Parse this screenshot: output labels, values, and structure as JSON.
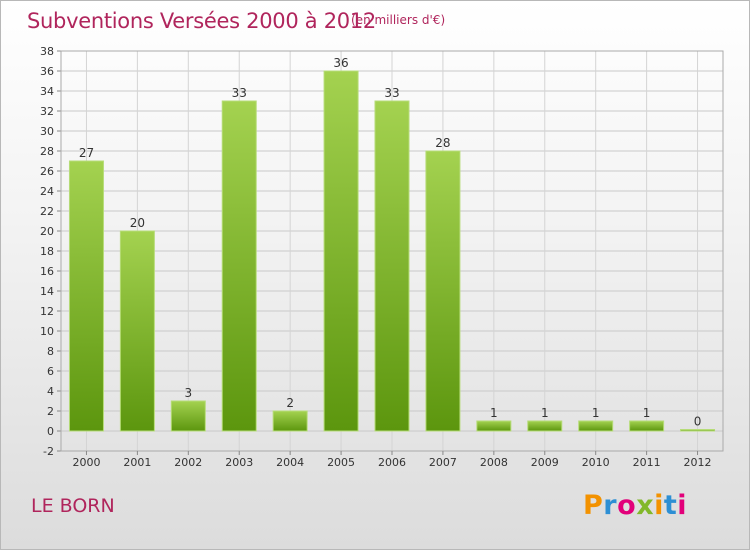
{
  "header": {
    "title": "Subventions Versées 2000 à 2012",
    "units": "(en milliers d'€)"
  },
  "footer": {
    "commune": "LE BORN",
    "logo_text": "Proxiti"
  },
  "colors": {
    "title": "#b0255c",
    "bar_top": "#9ccc4a",
    "bar_bottom": "#5f9a10",
    "grid": "#c8c8c8"
  },
  "chart_data": {
    "type": "bar",
    "title": "Subventions Versées 2000 à 2012",
    "subtitle": "(en milliers d'€)",
    "xlabel": "",
    "ylabel": "",
    "categories": [
      "2000",
      "2001",
      "2002",
      "2003",
      "2004",
      "2005",
      "2006",
      "2007",
      "2008",
      "2009",
      "2010",
      "2011",
      "2012"
    ],
    "values": [
      27,
      20,
      3,
      33,
      2,
      36,
      33,
      28,
      1,
      1,
      1,
      1,
      0
    ],
    "data_labels": [
      "27",
      "20",
      "3",
      "33",
      "2",
      "36",
      "33",
      "28",
      "1",
      "1",
      "1",
      "1",
      "0"
    ],
    "ylim": [
      -2,
      38
    ],
    "yticks": [
      -2,
      0,
      2,
      4,
      6,
      8,
      10,
      12,
      14,
      16,
      18,
      20,
      22,
      24,
      26,
      28,
      30,
      32,
      34,
      36,
      38
    ],
    "grid": true,
    "legend": "none"
  }
}
